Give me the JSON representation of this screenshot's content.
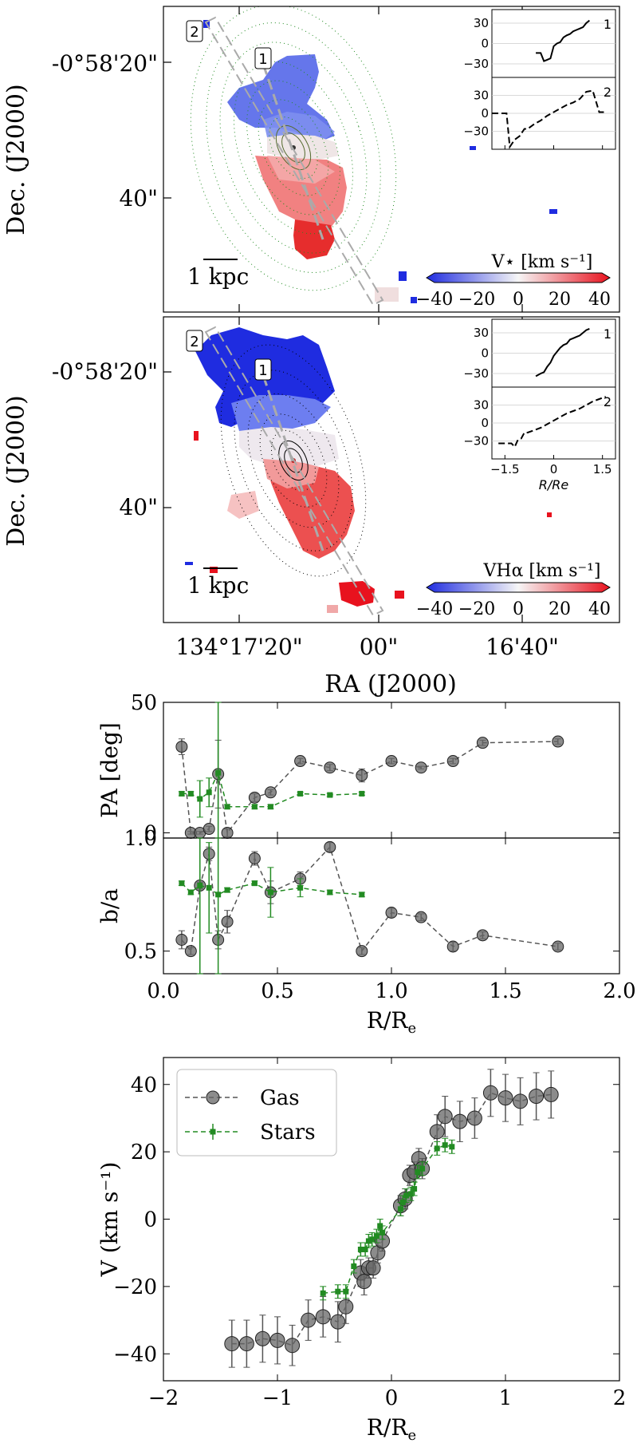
{
  "colors": {
    "gas": "#555555",
    "stars": "#228b22",
    "redshift": "#e8121e",
    "blueshift": "#1f2ce0",
    "contour_stars": "#228b22",
    "contour_gas": "#000000",
    "slit": "#aaaaaa"
  },
  "maps": {
    "dec_label": "Dec. (J2000)",
    "ra_label": "RA (J2000)",
    "dec_ticks": [
      "-0°58'20\"",
      "40\""
    ],
    "ra_ticks": [
      "134°17'20\"",
      "00\"",
      "16'40\""
    ],
    "scale_bar": "1 kpc",
    "panels": [
      {
        "colorbar_label": "V⋆ [km s⁻¹]",
        "colorbar_ticks": [
          "−40",
          "−20",
          "0",
          "20",
          "40"
        ],
        "slit_labels": [
          "2",
          "1"
        ],
        "inset": {
          "ticks": [
            "30",
            "0",
            "−30"
          ],
          "curve_labels": [
            "1",
            "2"
          ],
          "curve1_x": [
            -0.55,
            -0.4,
            -0.3,
            -0.2,
            -0.1,
            0.0,
            0.1,
            0.2,
            0.3,
            0.4,
            0.5,
            0.6,
            0.7,
            0.8,
            0.9,
            1.0,
            1.1
          ],
          "curve1_y": [
            -14,
            -14,
            -26,
            -24,
            -22,
            -4,
            0,
            2,
            9,
            12,
            14,
            18,
            20,
            22,
            24,
            30,
            34
          ],
          "curve2_x": [
            -1.9,
            -1.6,
            -1.45,
            -1.35,
            -1.2,
            -1.05,
            -0.9,
            -0.8,
            -0.6,
            -0.4,
            -0.2,
            0.0,
            0.2,
            0.4,
            0.6,
            0.8,
            1.0,
            1.2,
            1.4,
            1.6
          ],
          "curve2_y": [
            0,
            0,
            0,
            -56,
            -44,
            -38,
            -26,
            -26,
            -18,
            -12,
            -4,
            2,
            8,
            14,
            18,
            24,
            36,
            38,
            2,
            2
          ]
        }
      },
      {
        "colorbar_label": "VHα [km s⁻¹]",
        "colorbar_ticks": [
          "−40",
          "−20",
          "0",
          "20",
          "40"
        ],
        "slit_labels": [
          "2",
          "1"
        ],
        "inset": {
          "ticks": [
            "30",
            "0",
            "−30"
          ],
          "curve_labels": [
            "1",
            "2"
          ],
          "xticks": [
            "−1.5",
            "0",
            "1.5"
          ],
          "xlabel": "R/Re",
          "curve1_x": [
            -0.55,
            -0.4,
            -0.3,
            -0.2,
            -0.1,
            0.0,
            0.1,
            0.2,
            0.3,
            0.4,
            0.5,
            0.6,
            0.7,
            0.8,
            0.9,
            1.0,
            1.1
          ],
          "curve1_y": [
            -34,
            -30,
            -28,
            -20,
            -14,
            -4,
            2,
            8,
            12,
            14,
            20,
            22,
            24,
            26,
            30,
            34,
            36
          ],
          "curve2_x": [
            -1.7,
            -1.5,
            -1.3,
            -1.2,
            -1.1,
            -1.0,
            -0.9,
            -0.8,
            -0.6,
            -0.4,
            -0.2,
            0.0,
            0.2,
            0.4,
            0.6,
            0.8,
            1.0,
            1.2,
            1.4,
            1.6
          ],
          "curve2_y": [
            -34,
            -34,
            -34,
            -40,
            -28,
            -26,
            -16,
            -16,
            -12,
            -8,
            -2,
            4,
            10,
            16,
            20,
            24,
            30,
            36,
            40,
            44
          ]
        }
      }
    ]
  },
  "chart_data": [
    {
      "type": "scatter",
      "xlabel": "",
      "ylabel": "PA [deg]",
      "xlim": [
        0,
        2
      ],
      "ylim": [
        -2,
        50
      ],
      "yticks": [
        "0",
        "50"
      ],
      "series": [
        {
          "name": "Gas",
          "x": [
            0.08,
            0.12,
            0.16,
            0.2,
            0.24,
            0.28,
            0.4,
            0.47,
            0.6,
            0.73,
            0.87,
            1.0,
            1.13,
            1.27,
            1.4,
            1.73
          ],
          "y": [
            33,
            0,
            0,
            1.5,
            22.5,
            0,
            13.5,
            15.5,
            27.5,
            25,
            22,
            27.5,
            25,
            27.5,
            34.5,
            35
          ],
          "err": [
            3,
            0.5,
            0.5,
            1,
            13,
            1.5,
            1.5,
            1,
            1,
            1.2,
            2.5,
            1,
            0.5,
            1,
            1,
            1
          ]
        },
        {
          "name": "Stars",
          "x": [
            0.08,
            0.12,
            0.16,
            0.2,
            0.24,
            0.28,
            0.4,
            0.47,
            0.6,
            0.73,
            0.87
          ],
          "y": [
            15,
            15,
            13,
            15.5,
            23,
            10,
            10,
            10,
            15,
            14.5,
            15
          ],
          "err": [
            0.8,
            0.8,
            7,
            5.5,
            28,
            0.8,
            0.8,
            0.8,
            0.6,
            0.6,
            0.6
          ]
        }
      ]
    },
    {
      "type": "scatter",
      "xlabel": "R/Re",
      "ylabel": "b/a",
      "xlim": [
        0,
        2
      ],
      "ylim": [
        0.4,
        1.0
      ],
      "xticks": [
        "0.0",
        "0.5",
        "1.0",
        "1.5",
        "2.0"
      ],
      "yticks": [
        "0.5",
        "1.0"
      ],
      "series": [
        {
          "name": "Gas",
          "x": [
            0.08,
            0.12,
            0.16,
            0.2,
            0.24,
            0.28,
            0.4,
            0.47,
            0.6,
            0.73,
            0.87,
            1.0,
            1.13,
            1.27,
            1.4,
            1.73
          ],
          "y": [
            0.55,
            0.5,
            0.79,
            0.93,
            0.55,
            0.63,
            0.91,
            0.76,
            0.82,
            0.96,
            0.5,
            0.67,
            0.65,
            0.52,
            0.57,
            0.52
          ],
          "err": [
            0.04,
            0.015,
            0.015,
            0.03,
            0.04,
            0.05,
            0.03,
            0.05,
            0.03,
            0.02,
            0.015,
            0.02,
            0.015,
            0.02,
            0.015,
            0.015
          ]
        },
        {
          "name": "Stars",
          "x": [
            0.08,
            0.12,
            0.16,
            0.2,
            0.24,
            0.28,
            0.4,
            0.47,
            0.6,
            0.73,
            0.87
          ],
          "y": [
            0.8,
            0.76,
            0.79,
            0.78,
            0.75,
            0.77,
            0.8,
            0.76,
            0.78,
            0.76,
            0.75
          ],
          "err": [
            0.01,
            0.01,
            0.4,
            0.2,
            0.4,
            0.01,
            0.01,
            0.11,
            0.04,
            0.01,
            0.01
          ]
        }
      ]
    },
    {
      "type": "scatter",
      "xlabel": "R/Re",
      "ylabel": "V (km s⁻¹)",
      "xlim": [
        -2,
        2
      ],
      "ylim": [
        -48,
        48
      ],
      "xticks": [
        "−2",
        "−1",
        "0",
        "1",
        "2"
      ],
      "yticks": [
        "40",
        "20",
        "0",
        "−20",
        "−40"
      ],
      "legend": "top-left",
      "series": [
        {
          "name": "Gas",
          "x": [
            -1.4,
            -1.27,
            -1.13,
            -1.0,
            -0.87,
            -0.73,
            -0.6,
            -0.47,
            -0.4,
            -0.27,
            -0.24,
            -0.2,
            -0.16,
            -0.12,
            -0.08,
            0.08,
            0.12,
            0.16,
            0.2,
            0.24,
            0.27,
            0.4,
            0.47,
            0.6,
            0.73,
            0.87,
            1.0,
            1.13,
            1.27,
            1.4
          ],
          "y": [
            -37,
            -37,
            -35.5,
            -36,
            -37.5,
            -30,
            -29,
            -30.5,
            -26,
            -16,
            -18.5,
            -14.5,
            -14.5,
            -10,
            -6.5,
            4,
            6,
            13,
            14,
            18,
            15,
            26,
            30.5,
            29,
            30,
            37.5,
            36,
            35,
            36.5,
            37
          ],
          "err": [
            7,
            7,
            7,
            7,
            6,
            6,
            6,
            6,
            5,
            4,
            4,
            3,
            3,
            3,
            3,
            3,
            3,
            3,
            3,
            3,
            3,
            5,
            6,
            6,
            6,
            7,
            7,
            7,
            7,
            7
          ]
        },
        {
          "name": "Stars",
          "x": [
            -0.6,
            -0.47,
            -0.4,
            -0.33,
            -0.27,
            -0.23,
            -0.2,
            -0.17,
            -0.13,
            -0.1,
            -0.08,
            0.08,
            0.1,
            0.13,
            0.17,
            0.2,
            0.23,
            0.27,
            0.4,
            0.47,
            0.53
          ],
          "y": [
            -22,
            -21.5,
            -21.5,
            -14,
            -9,
            -9,
            -6.5,
            -6,
            -5,
            -2,
            -4,
            3,
            5,
            7,
            7.5,
            9,
            14,
            15,
            21,
            22,
            21.5
          ],
          "err": [
            2,
            2,
            2,
            2,
            2,
            2,
            2,
            2,
            2,
            2,
            2,
            2,
            2,
            2,
            2,
            2,
            2,
            2,
            2,
            2,
            2
          ]
        }
      ]
    }
  ]
}
